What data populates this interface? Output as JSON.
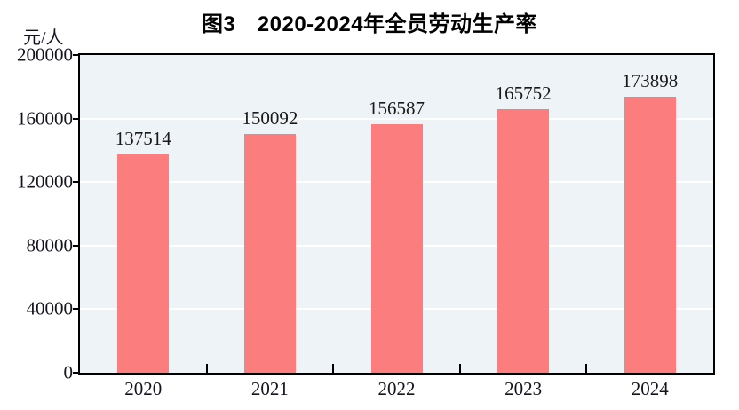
{
  "chart_data": {
    "type": "bar",
    "title": "图3　2020-2024年全员劳动生产率",
    "unit_label": "元/人",
    "xlabel": "",
    "ylabel": "元/人",
    "categories": [
      "2020",
      "2021",
      "2022",
      "2023",
      "2024"
    ],
    "values": [
      137514,
      150092,
      156587,
      165752,
      173898
    ],
    "value_labels": [
      "137514",
      "150092",
      "156587",
      "165752",
      "173898"
    ],
    "ylim": [
      0,
      200000
    ],
    "ytick_step": 40000,
    "ytick_labels": [
      "0",
      "40000",
      "80000",
      "120000",
      "160000",
      "200000"
    ],
    "grid": "horizontal",
    "legend_position": "none",
    "colors": {
      "bar_fill": "#FB7D7D",
      "plot_background": "#EDF3F6",
      "gridline": "#FFFFFF",
      "axis_border": "#000000",
      "text": "#1A1A1A"
    }
  }
}
